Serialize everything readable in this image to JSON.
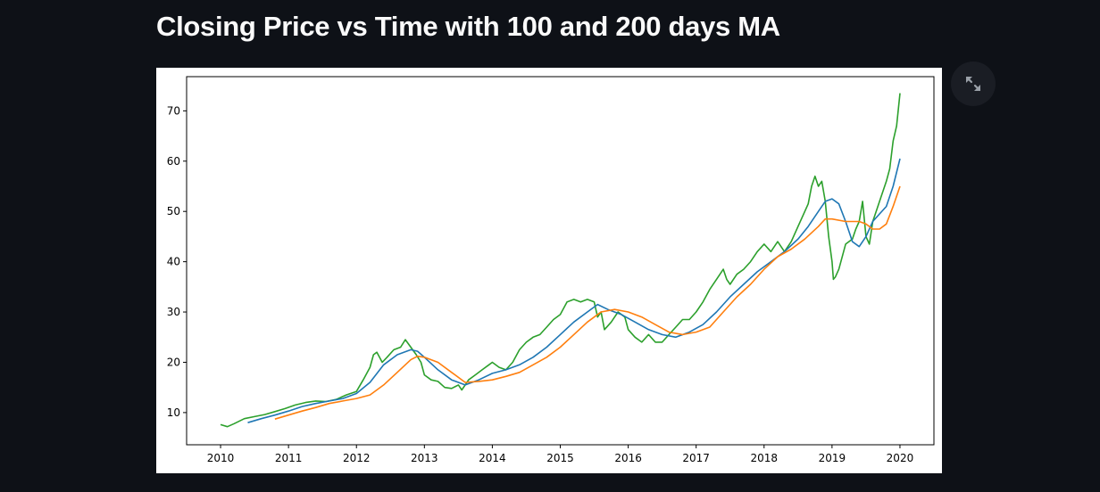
{
  "page": {
    "title": "Closing Price vs Time with 100 and 200 days MA"
  },
  "toolbar": {
    "expand_icon": "fullscreen-expand-icon"
  },
  "chart_data": {
    "type": "line",
    "title": "",
    "xlabel": "",
    "ylabel": "",
    "xlim": [
      2009.5,
      2020.5
    ],
    "ylim": [
      3.6,
      76.8
    ],
    "x_ticks": [
      "2010",
      "2011",
      "2012",
      "2013",
      "2014",
      "2015",
      "2016",
      "2017",
      "2018",
      "2019",
      "2020"
    ],
    "y_ticks": [
      "10",
      "20",
      "30",
      "40",
      "50",
      "60",
      "70"
    ],
    "grid": false,
    "legend": "none",
    "series": [
      {
        "color": "#2ca02c",
        "x": [
          2010.0,
          2010.1,
          2010.2,
          2010.35,
          2010.5,
          2010.65,
          2010.8,
          2010.95,
          2011.1,
          2011.25,
          2011.4,
          2011.55,
          2011.7,
          2011.85,
          2012.0,
          2012.1,
          2012.2,
          2012.25,
          2012.3,
          2012.38,
          2012.45,
          2012.55,
          2012.65,
          2012.72,
          2012.8,
          2012.88,
          2012.95,
          2013.0,
          2013.1,
          2013.2,
          2013.3,
          2013.4,
          2013.5,
          2013.55,
          2013.6,
          2013.65,
          2013.75,
          2013.85,
          2013.95,
          2014.0,
          2014.1,
          2014.2,
          2014.3,
          2014.4,
          2014.5,
          2014.6,
          2014.7,
          2014.8,
          2014.9,
          2015.0,
          2015.1,
          2015.2,
          2015.3,
          2015.4,
          2015.5,
          2015.55,
          2015.6,
          2015.65,
          2015.75,
          2015.85,
          2015.95,
          2016.0,
          2016.1,
          2016.2,
          2016.3,
          2016.4,
          2016.5,
          2016.6,
          2016.7,
          2016.8,
          2016.9,
          2017.0,
          2017.1,
          2017.2,
          2017.3,
          2017.4,
          2017.45,
          2017.5,
          2017.6,
          2017.7,
          2017.8,
          2017.9,
          2018.0,
          2018.1,
          2018.2,
          2018.3,
          2018.4,
          2018.5,
          2018.6,
          2018.65,
          2018.7,
          2018.75,
          2018.8,
          2018.85,
          2018.9,
          2018.95,
          2019.0,
          2019.02,
          2019.05,
          2019.1,
          2019.2,
          2019.3,
          2019.35,
          2019.4,
          2019.45,
          2019.5,
          2019.55,
          2019.6,
          2019.65,
          2019.7,
          2019.75,
          2019.8,
          2019.85,
          2019.9,
          2019.95,
          2020.0
        ],
        "values": [
          7.6,
          7.2,
          7.8,
          8.8,
          9.2,
          9.6,
          10.2,
          10.8,
          11.5,
          12.0,
          12.3,
          12.2,
          12.6,
          13.5,
          14.2,
          16.5,
          19.0,
          21.5,
          22.0,
          20.0,
          21.0,
          22.5,
          23.0,
          24.5,
          23.0,
          21.5,
          20.0,
          17.5,
          16.5,
          16.2,
          15.0,
          14.8,
          15.5,
          14.5,
          15.5,
          16.5,
          17.5,
          18.5,
          19.5,
          20.0,
          19.0,
          18.5,
          20.0,
          22.5,
          24.0,
          25.0,
          25.5,
          27.0,
          28.5,
          29.5,
          32.0,
          32.5,
          32.0,
          32.5,
          32.0,
          29.0,
          30.0,
          26.5,
          28.0,
          30.0,
          29.0,
          26.5,
          25.0,
          24.0,
          25.5,
          24.0,
          24.0,
          25.5,
          27.0,
          28.5,
          28.5,
          30.0,
          32.0,
          34.5,
          36.5,
          38.5,
          36.5,
          35.5,
          37.5,
          38.5,
          40.0,
          42.0,
          43.5,
          42.0,
          44.0,
          42.0,
          44.0,
          47.0,
          50.0,
          51.5,
          55.0,
          57.0,
          55.0,
          56.0,
          52.0,
          45.0,
          40.0,
          36.5,
          37.0,
          38.5,
          43.5,
          44.5,
          46.5,
          48.0,
          52.0,
          45.0,
          43.5,
          48.0,
          50.0,
          52.0,
          54.0,
          56.0,
          58.5,
          64.0,
          67.0,
          73.5
        ]
      },
      {
        "color": "#1f77b4",
        "x": [
          2010.4,
          2010.6,
          2010.8,
          2011.0,
          2011.2,
          2011.4,
          2011.6,
          2011.8,
          2012.0,
          2012.2,
          2012.4,
          2012.6,
          2012.8,
          2012.9,
          2013.0,
          2013.2,
          2013.4,
          2013.6,
          2013.8,
          2014.0,
          2014.2,
          2014.4,
          2014.6,
          2014.8,
          2015.0,
          2015.2,
          2015.4,
          2015.55,
          2015.7,
          2015.9,
          2016.1,
          2016.3,
          2016.5,
          2016.7,
          2016.9,
          2017.1,
          2017.3,
          2017.5,
          2017.7,
          2017.9,
          2018.1,
          2018.3,
          2018.5,
          2018.65,
          2018.8,
          2018.9,
          2019.0,
          2019.1,
          2019.2,
          2019.3,
          2019.4,
          2019.5,
          2019.6,
          2019.7,
          2019.8,
          2019.9,
          2020.0
        ],
        "values": [
          8.0,
          8.8,
          9.5,
          10.3,
          11.2,
          11.8,
          12.3,
          12.8,
          13.8,
          16.0,
          19.5,
          21.5,
          22.5,
          22.2,
          21.0,
          18.5,
          16.5,
          15.5,
          16.5,
          17.8,
          18.5,
          19.5,
          21.0,
          23.0,
          25.5,
          28.0,
          30.0,
          31.5,
          30.5,
          29.5,
          28.0,
          26.5,
          25.5,
          25.0,
          26.0,
          27.5,
          30.0,
          33.0,
          35.5,
          38.0,
          40.0,
          42.0,
          44.5,
          47.0,
          50.0,
          52.0,
          52.5,
          51.5,
          48.0,
          44.0,
          43.0,
          45.0,
          48.0,
          49.5,
          51.0,
          55.0,
          60.5
        ]
      },
      {
        "color": "#ff7f0e",
        "x": [
          2010.8,
          2011.0,
          2011.2,
          2011.4,
          2011.6,
          2011.8,
          2012.0,
          2012.2,
          2012.4,
          2012.6,
          2012.8,
          2012.9,
          2013.0,
          2013.2,
          2013.4,
          2013.6,
          2013.8,
          2014.0,
          2014.2,
          2014.4,
          2014.6,
          2014.8,
          2015.0,
          2015.2,
          2015.4,
          2015.6,
          2015.8,
          2016.0,
          2016.2,
          2016.4,
          2016.6,
          2016.8,
          2017.0,
          2017.2,
          2017.4,
          2017.6,
          2017.8,
          2018.0,
          2018.2,
          2018.4,
          2018.6,
          2018.8,
          2018.9,
          2019.0,
          2019.2,
          2019.4,
          2019.5,
          2019.6,
          2019.7,
          2019.8,
          2019.9,
          2020.0
        ],
        "values": [
          8.7,
          9.5,
          10.3,
          11.0,
          11.8,
          12.3,
          12.8,
          13.5,
          15.5,
          18.0,
          20.5,
          21.2,
          21.0,
          20.0,
          18.0,
          16.0,
          16.2,
          16.5,
          17.2,
          18.0,
          19.5,
          21.0,
          23.0,
          25.5,
          28.0,
          30.0,
          30.5,
          30.0,
          29.0,
          27.5,
          26.0,
          25.5,
          26.0,
          27.0,
          30.0,
          33.0,
          35.5,
          38.5,
          41.0,
          42.5,
          44.5,
          47.0,
          48.5,
          48.5,
          48.0,
          48.0,
          47.5,
          46.5,
          46.5,
          47.5,
          51.0,
          55.0
        ]
      }
    ]
  }
}
